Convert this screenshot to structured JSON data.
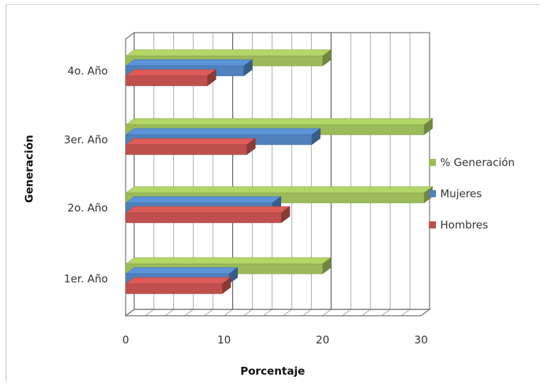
{
  "chart_data": {
    "type": "bar",
    "orientation": "horizontal",
    "three_d": true,
    "categories": [
      "1er. Año",
      "2o. Año",
      "3er. Año",
      "4o. Año"
    ],
    "series": [
      {
        "name": "Hombres",
        "color": "#c0504d",
        "values": [
          9.8,
          15.8,
          12.3,
          8.3
        ]
      },
      {
        "name": "Mujeres",
        "color": "#4f81bd",
        "values": [
          10.5,
          14.9,
          18.9,
          12.0
        ]
      },
      {
        "name": "% Generación",
        "color": "#9bbb59",
        "values": [
          20.0,
          30.3,
          30.3,
          20.0
        ]
      }
    ],
    "xlabel": "Porcentaje",
    "ylabel": "Generación",
    "xlim": [
      0,
      30
    ],
    "xticks": [
      0,
      10,
      20,
      30
    ],
    "grid": true,
    "legend_position": "right"
  }
}
